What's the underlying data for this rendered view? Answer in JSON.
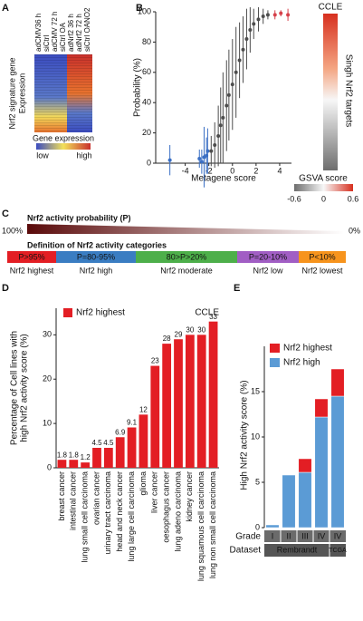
{
  "panel_labels": [
    "A",
    "B",
    "C",
    "D",
    "E"
  ],
  "panel_a": {
    "column_labels": [
      "adCMV36 h",
      "siCtrl",
      "adCMV 72 h",
      "siCtrl OA",
      "adNrf2 36 h",
      "adNrf2 72 h",
      "siCtrl OANO2"
    ],
    "y_label": [
      "Nrf2 signature gene",
      "Expression"
    ],
    "legend": {
      "title": "Gene expression",
      "low": "low",
      "high": "high"
    }
  },
  "panel_c": {
    "probability_title": "Nrf2 activity probability (P)",
    "left_label": "100%",
    "right_label": "0%",
    "categories_title": "Definition of Nrf2 activity categories",
    "categories": [
      {
        "range": "P>95%",
        "name": "Nrf2 highest",
        "color": "#e31e24"
      },
      {
        "range": "P=80-95%",
        "name": "Nrf2 high",
        "color": "#3a7dc2"
      },
      {
        "range": "80>P>20%",
        "name": "Nrf2 moderate",
        "color": "#4daf4a"
      },
      {
        "range": "P=20-10%",
        "name": "Nrf2 low",
        "color": "#a15ec4"
      },
      {
        "range": "P<10%",
        "name": "Nrf2 lowest",
        "color": "#f7941d"
      }
    ]
  },
  "chart_data": [
    {
      "type": "scatter",
      "x_label": "Metagene score",
      "y_label": "Probability (%)",
      "xlim": [
        -6.5,
        5
      ],
      "xticks": [
        -4,
        -2,
        0,
        2,
        4
      ],
      "ylim": [
        0,
        100
      ],
      "yticks": [
        0,
        20,
        40,
        60,
        80,
        100
      ],
      "series": [
        {
          "color": "#3a6fc4",
          "x": [
            -5.3,
            -2.8,
            -2.6,
            -2.4,
            -2.2,
            -2.1
          ],
          "values": [
            2,
            3,
            1,
            4,
            5,
            8
          ],
          "errors": [
            10,
            6,
            8,
            20,
            12,
            15
          ]
        },
        {
          "color": "#4d4d4d",
          "x": [
            -1.8,
            -1.5,
            -1.2,
            -1,
            -0.8,
            -0.5,
            -0.3,
            0,
            0.3,
            0.6,
            0.9,
            1.2,
            1.5,
            1.8,
            2.2,
            2.6,
            3
          ],
          "values": [
            8,
            12,
            18,
            25,
            30,
            38,
            45,
            52,
            60,
            68,
            75,
            82,
            88,
            92,
            95,
            97,
            98
          ],
          "errors": [
            10,
            15,
            20,
            25,
            30,
            30,
            30,
            30,
            30,
            25,
            22,
            20,
            15,
            10,
            8,
            5,
            3
          ]
        },
        {
          "color": "#d6404a",
          "x": [
            3.6,
            4.1,
            4.7
          ],
          "values": [
            98,
            99,
            98
          ],
          "errors": [
            3,
            2,
            4
          ]
        }
      ],
      "side_heatmap": {
        "title": "CCLE",
        "label": "Singh Nrf2 targets"
      },
      "colorbar": {
        "label": "GSVA score",
        "lim": [
          -0.6,
          0.6
        ],
        "ticks": [
          -0.6,
          0,
          0.6
        ]
      }
    },
    {
      "type": "bar",
      "title": "CCLE",
      "y_label": [
        "Percentage of Cell lines with",
        "high Nrf2 activity score (%)"
      ],
      "categories": [
        "breast cancer",
        "intestinal cancer",
        "lung small cell carcinoma",
        "ovarian cancer",
        "urinary tract carcinoma",
        "head and neck cancer",
        "lung large cell carcinoma",
        "glioma",
        "liver cancer",
        "oesophagus cancer",
        "lung adeno carcinoma",
        "kidney cancer",
        "lung squamous cell carcinoma",
        "lung non small cell carcinoma"
      ],
      "series": [
        {
          "name": "Nrf2 highest",
          "color": "#e31e24",
          "values": [
            1.8,
            1.8,
            1.2,
            4.5,
            4.5,
            6.9,
            9.1,
            12,
            23,
            28,
            29,
            30,
            30,
            33
          ]
        }
      ],
      "ylim": [
        0,
        36
      ],
      "yticks": [
        0,
        10,
        20,
        30
      ]
    },
    {
      "type": "stacked_bar",
      "y_label": "High Nrf2 activity score (%)",
      "x_label": "Grade",
      "categories": [
        "I",
        "II",
        "III",
        "IV",
        "IV"
      ],
      "groups_label": "Dataset",
      "groups": [
        "Rembrandt",
        "TCGA"
      ],
      "ylim": [
        0,
        20
      ],
      "yticks": [
        0,
        5,
        10,
        15
      ],
      "series": [
        {
          "name": "Nrf2 high",
          "color": "#5b9bd5",
          "values": [
            0.3,
            5.8,
            6.1,
            12.2,
            14.5
          ]
        },
        {
          "name": "Nrf2 highest",
          "color": "#e31e24",
          "values": [
            0,
            0,
            1.5,
            2,
            3
          ]
        }
      ]
    }
  ]
}
